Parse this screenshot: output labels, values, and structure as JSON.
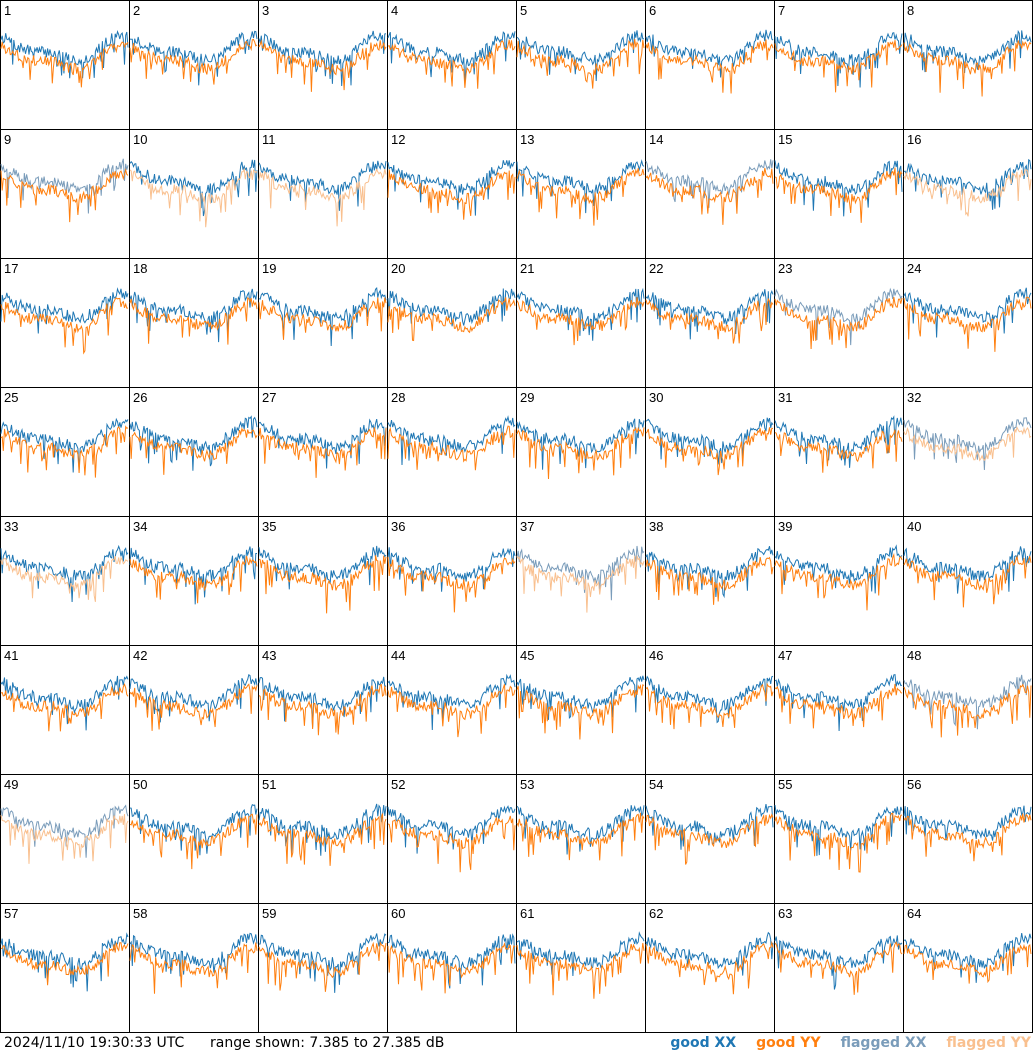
{
  "footer": {
    "timestamp": "2024/11/10 19:30:33 UTC",
    "range_text": "range shown: 7.385 to 27.385 dB"
  },
  "legend": {
    "good_xx": "good XX",
    "good_yy": "good YY",
    "flagged_xx": "flagged XX",
    "flagged_yy": "flagged YY"
  },
  "colors": {
    "good_xx": "#1f77b4",
    "good_yy": "#ff7f0e",
    "flagged_xx": "#7a9cba",
    "flagged_yy": "#f9c08f",
    "border": "#000000"
  },
  "chart_data": {
    "type": "line",
    "layout": "8x8 small multiples, one per antenna",
    "y_range_db": [
      7.385,
      27.385
    ],
    "panels": [
      {
        "id": "1",
        "xx": "good",
        "yy": "good"
      },
      {
        "id": "2",
        "xx": "good",
        "yy": "good"
      },
      {
        "id": "3",
        "xx": "good",
        "yy": "good"
      },
      {
        "id": "4",
        "xx": "good",
        "yy": "good"
      },
      {
        "id": "5",
        "xx": "good",
        "yy": "good"
      },
      {
        "id": "6",
        "xx": "good",
        "yy": "good"
      },
      {
        "id": "7",
        "xx": "good",
        "yy": "good"
      },
      {
        "id": "8",
        "xx": "good",
        "yy": "good"
      },
      {
        "id": "9",
        "xx": "flagged",
        "yy": "good"
      },
      {
        "id": "10",
        "xx": "good",
        "yy": "flagged"
      },
      {
        "id": "11",
        "xx": "good",
        "yy": "flagged"
      },
      {
        "id": "12",
        "xx": "good",
        "yy": "good"
      },
      {
        "id": "13",
        "xx": "good",
        "yy": "good"
      },
      {
        "id": "14",
        "xx": "flagged",
        "yy": "good"
      },
      {
        "id": "15",
        "xx": "good",
        "yy": "good"
      },
      {
        "id": "16",
        "xx": "good",
        "yy": "flagged"
      },
      {
        "id": "17",
        "xx": "good",
        "yy": "good"
      },
      {
        "id": "18",
        "xx": "good",
        "yy": "good"
      },
      {
        "id": "19",
        "xx": "good",
        "yy": "good"
      },
      {
        "id": "20",
        "xx": "good",
        "yy": "good"
      },
      {
        "id": "21",
        "xx": "good",
        "yy": "good"
      },
      {
        "id": "22",
        "xx": "good",
        "yy": "good"
      },
      {
        "id": "23",
        "xx": "flagged",
        "yy": "good"
      },
      {
        "id": "24",
        "xx": "good",
        "yy": "good"
      },
      {
        "id": "25",
        "xx": "good",
        "yy": "good"
      },
      {
        "id": "26",
        "xx": "good",
        "yy": "good"
      },
      {
        "id": "27",
        "xx": "good",
        "yy": "good"
      },
      {
        "id": "28",
        "xx": "good",
        "yy": "good"
      },
      {
        "id": "29",
        "xx": "good",
        "yy": "good"
      },
      {
        "id": "30",
        "xx": "good",
        "yy": "good"
      },
      {
        "id": "31",
        "xx": "good",
        "yy": "good"
      },
      {
        "id": "32",
        "xx": "flagged",
        "yy": "flagged"
      },
      {
        "id": "33",
        "xx": "good",
        "yy": "flagged"
      },
      {
        "id": "34",
        "xx": "good",
        "yy": "good"
      },
      {
        "id": "35",
        "xx": "good",
        "yy": "good"
      },
      {
        "id": "36",
        "xx": "good",
        "yy": "good"
      },
      {
        "id": "37",
        "xx": "flagged",
        "yy": "flagged"
      },
      {
        "id": "38",
        "xx": "good",
        "yy": "good"
      },
      {
        "id": "39",
        "xx": "good",
        "yy": "good"
      },
      {
        "id": "40",
        "xx": "good",
        "yy": "good"
      },
      {
        "id": "41",
        "xx": "good",
        "yy": "good"
      },
      {
        "id": "42",
        "xx": "good",
        "yy": "good"
      },
      {
        "id": "43",
        "xx": "good",
        "yy": "good"
      },
      {
        "id": "44",
        "xx": "good",
        "yy": "good"
      },
      {
        "id": "45",
        "xx": "good",
        "yy": "good"
      },
      {
        "id": "46",
        "xx": "good",
        "yy": "good"
      },
      {
        "id": "47",
        "xx": "good",
        "yy": "good"
      },
      {
        "id": "48",
        "xx": "flagged",
        "yy": "good"
      },
      {
        "id": "49",
        "xx": "flagged",
        "yy": "flagged"
      },
      {
        "id": "50",
        "xx": "good",
        "yy": "good"
      },
      {
        "id": "51",
        "xx": "good",
        "yy": "good"
      },
      {
        "id": "52",
        "xx": "good",
        "yy": "good"
      },
      {
        "id": "53",
        "xx": "good",
        "yy": "good"
      },
      {
        "id": "54",
        "xx": "good",
        "yy": "good"
      },
      {
        "id": "55",
        "xx": "good",
        "yy": "good"
      },
      {
        "id": "56",
        "xx": "good",
        "yy": "good"
      },
      {
        "id": "57",
        "xx": "good",
        "yy": "good"
      },
      {
        "id": "58",
        "xx": "good",
        "yy": "good"
      },
      {
        "id": "59",
        "xx": "good",
        "yy": "good"
      },
      {
        "id": "60",
        "xx": "good",
        "yy": "good"
      },
      {
        "id": "61",
        "xx": "good",
        "yy": "good"
      },
      {
        "id": "62",
        "xx": "good",
        "yy": "good"
      },
      {
        "id": "63",
        "xx": "good",
        "yy": "good"
      },
      {
        "id": "64",
        "xx": "good",
        "yy": "good"
      }
    ]
  }
}
